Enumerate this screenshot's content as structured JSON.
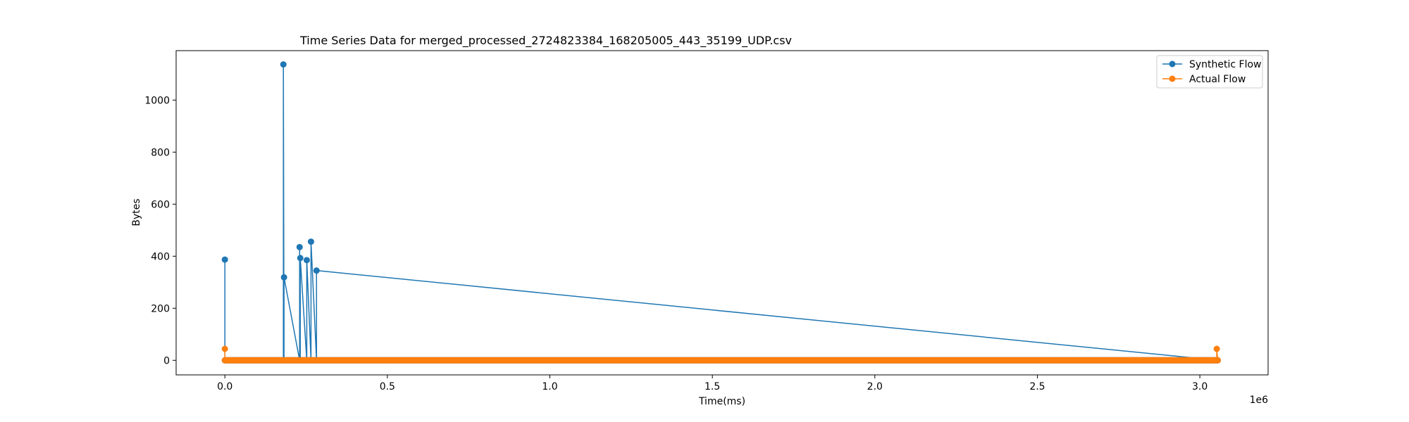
{
  "chart_data": {
    "type": "line",
    "title": "Time Series Data for merged_processed_2724823384_168205005_443_35199_UDP.csv",
    "xlabel": "Time(ms)",
    "ylabel": "Bytes",
    "x_offset_label": "1e6",
    "xlim": [
      -150000,
      3210000
    ],
    "ylim": [
      -56,
      1190
    ],
    "x_ticks": [
      0,
      500000,
      1000000,
      1500000,
      2000000,
      2500000,
      3000000
    ],
    "x_tick_labels": [
      "0.0",
      "0.5",
      "1.0",
      "1.5",
      "2.0",
      "2.5",
      "3.0"
    ],
    "y_ticks": [
      0,
      200,
      400,
      600,
      800,
      1000
    ],
    "y_tick_labels": [
      "0",
      "200",
      "400",
      "600",
      "800",
      "1000"
    ],
    "grid": false,
    "legend": "top-right",
    "series": [
      {
        "name": "Synthetic Flow",
        "color": "#1f77b4",
        "marker": "circle",
        "baseline": {
          "value": 0,
          "x_start": 0,
          "x_end": 3055000
        },
        "x": [
          0,
          180000,
          182000,
          230000,
          232000,
          252000,
          265000,
          282000
        ],
        "values": [
          387,
          1137,
          319,
          435,
          393,
          385,
          456,
          345
        ]
      },
      {
        "name": "Actual Flow",
        "color": "#ff7f0e",
        "marker": "circle",
        "baseline": {
          "value": 0,
          "x_start": 0,
          "x_end": 3055000
        },
        "x": [
          0,
          3052000
        ],
        "values": [
          44,
          44
        ]
      }
    ]
  }
}
